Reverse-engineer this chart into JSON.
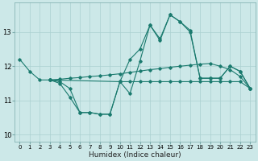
{
  "xlabel": "Humidex (Indice chaleur)",
  "background_color": "#cce8e8",
  "grid_color": "#aad0d0",
  "line_color": "#1a7a6e",
  "xlim": [
    -0.5,
    23.5
  ],
  "ylim": [
    9.8,
    13.85
  ],
  "xticks": [
    0,
    1,
    2,
    3,
    4,
    5,
    6,
    7,
    8,
    9,
    10,
    11,
    12,
    13,
    14,
    15,
    16,
    17,
    18,
    19,
    20,
    21,
    22,
    23
  ],
  "yticks": [
    10,
    11,
    12,
    13
  ],
  "lines": [
    {
      "x": [
        0,
        1,
        2,
        3,
        4,
        5,
        6,
        7,
        8,
        9,
        10,
        11,
        12,
        13,
        14,
        15,
        16,
        17,
        18,
        19,
        20,
        21,
        22,
        23
      ],
      "y": [
        12.2,
        11.85,
        11.6,
        11.6,
        11.5,
        11.1,
        10.65,
        10.65,
        10.6,
        10.6,
        11.55,
        11.2,
        12.15,
        13.2,
        12.8,
        13.5,
        13.3,
        13.0,
        11.65,
        11.65,
        11.65,
        12.0,
        11.85,
        11.35
      ]
    },
    {
      "x": [
        3,
        4,
        5,
        6,
        7,
        8,
        9,
        10,
        11,
        12,
        13,
        14,
        15,
        16,
        17,
        18,
        19,
        20,
        21,
        22,
        23
      ],
      "y": [
        11.6,
        11.62,
        11.65,
        11.67,
        11.7,
        11.72,
        11.75,
        11.78,
        11.82,
        11.86,
        11.9,
        11.93,
        11.97,
        12.0,
        12.03,
        12.06,
        12.08,
        12.0,
        11.9,
        11.7,
        11.35
      ]
    },
    {
      "x": [
        3,
        10,
        11,
        12,
        13,
        14,
        15,
        16,
        17,
        18,
        19,
        20,
        21,
        22,
        23
      ],
      "y": [
        11.6,
        11.55,
        12.2,
        12.5,
        13.2,
        12.75,
        13.5,
        13.3,
        13.05,
        11.65,
        11.65,
        11.65,
        12.0,
        11.85,
        11.35
      ]
    },
    {
      "x": [
        3,
        4,
        5,
        6,
        7,
        8,
        9,
        10,
        11,
        12,
        13,
        14,
        15,
        16,
        17,
        18,
        19,
        20,
        21,
        22,
        23
      ],
      "y": [
        11.6,
        11.55,
        11.35,
        10.65,
        10.65,
        10.6,
        10.6,
        11.55,
        11.55,
        11.55,
        11.55,
        11.55,
        11.55,
        11.55,
        11.55,
        11.55,
        11.55,
        11.55,
        11.55,
        11.55,
        11.35
      ]
    }
  ]
}
